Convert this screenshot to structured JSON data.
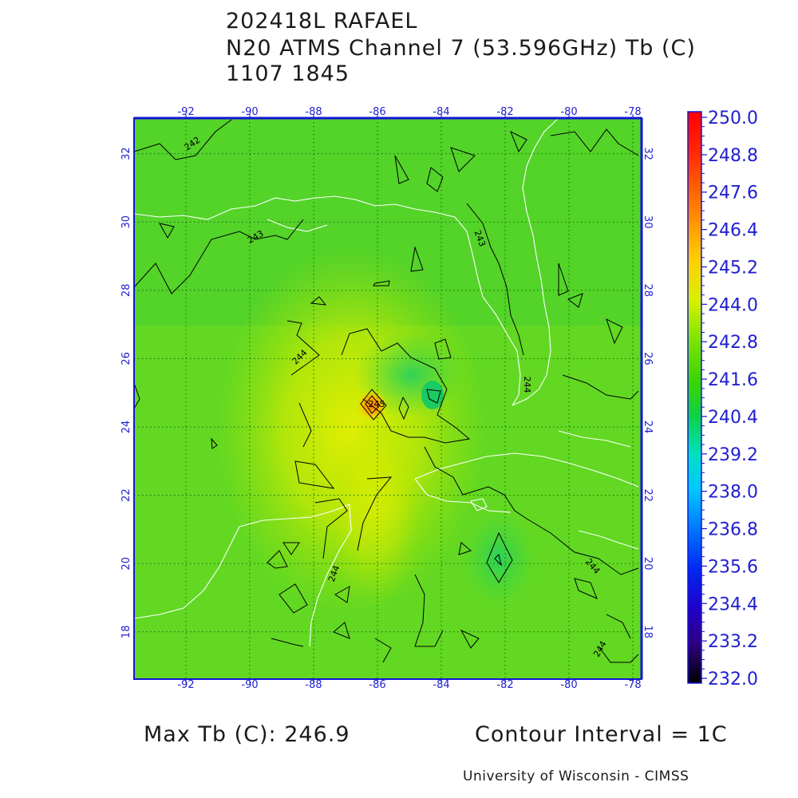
{
  "header": {
    "storm": "202418L RAFAEL",
    "product": "N20 ATMS Channel 7 (53.596GHz) Tb (C)",
    "datetime": "1107 1845"
  },
  "map": {
    "lon_ticks": [
      "-92",
      "-90",
      "-88",
      "-86",
      "-84",
      "-82",
      "-80",
      "-78"
    ],
    "lat_ticks": [
      "32",
      "30",
      "28",
      "26",
      "24",
      "22",
      "20",
      "18"
    ],
    "contour_labels": [
      "242",
      "243",
      "244",
      "243",
      "244",
      "244",
      "244",
      "244",
      "245"
    ],
    "colors": {
      "frame": "#1414d8",
      "grid": "#0b6b0b",
      "coast": "#ffffff",
      "contour": "#000000"
    }
  },
  "colorbar": {
    "labels": [
      "250.0",
      "248.8",
      "247.6",
      "246.4",
      "245.2",
      "244.0",
      "242.8",
      "241.6",
      "240.4",
      "239.2",
      "238.0",
      "236.8",
      "235.6",
      "234.4",
      "233.2",
      "232.0"
    ],
    "range": [
      232.0,
      250.0
    ]
  },
  "footer": {
    "max_tb": "Max Tb (C): 246.9",
    "contour_interval": "Contour Interval = 1C",
    "credit": "University of Wisconsin - CIMSS"
  }
}
